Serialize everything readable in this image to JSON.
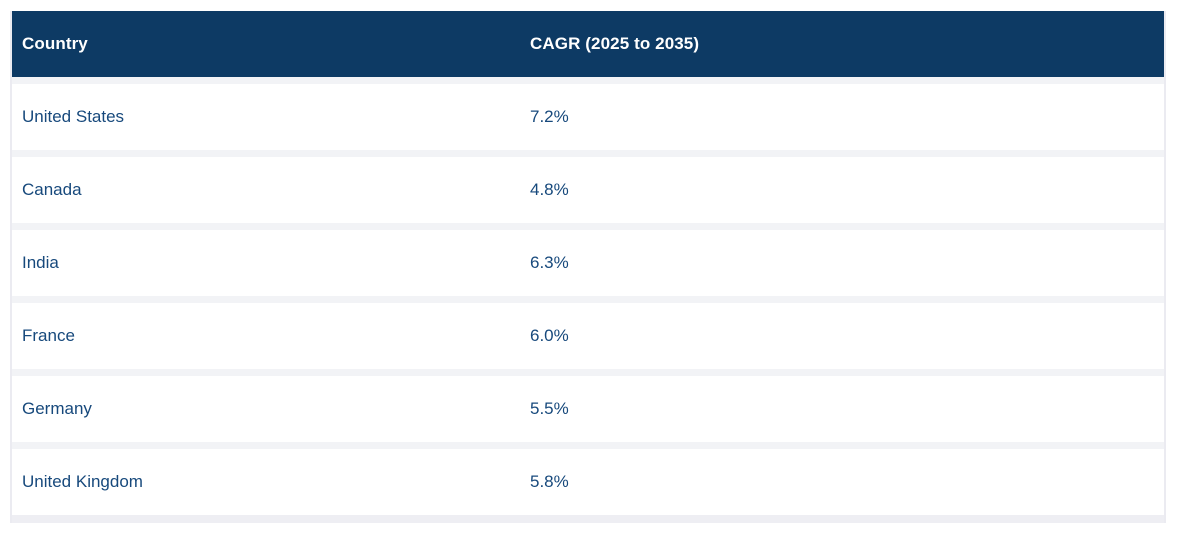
{
  "table": {
    "columns": [
      {
        "label": "Country"
      },
      {
        "label": "CAGR (2025 to 2035)"
      }
    ],
    "rows": [
      {
        "country": "United States",
        "cagr": "7.2%"
      },
      {
        "country": "Canada",
        "cagr": "4.8%"
      },
      {
        "country": "India",
        "cagr": "6.3%"
      },
      {
        "country": "France",
        "cagr": "6.0%"
      },
      {
        "country": "Germany",
        "cagr": "5.5%"
      },
      {
        "country": "United Kingdom",
        "cagr": "5.8%"
      }
    ],
    "colors": {
      "header_bg": "#0d3a64",
      "header_text": "#ffffff",
      "row_text": "#17497c",
      "row_bg": "#ffffff",
      "separator": "#f2f3f6",
      "outer_border": "#ebebf1",
      "bottom_border": "#eeeef3"
    }
  },
  "chart_data": {
    "type": "table",
    "title": "",
    "columns": [
      "Country",
      "CAGR (2025 to 2035)"
    ],
    "rows": [
      [
        "United States",
        "7.2%"
      ],
      [
        "Canada",
        "4.8%"
      ],
      [
        "India",
        "6.3%"
      ],
      [
        "France",
        "6.0%"
      ],
      [
        "Germany",
        "5.5%"
      ],
      [
        "United Kingdom",
        "5.8%"
      ]
    ],
    "series": [
      {
        "name": "CAGR (2025 to 2035)",
        "categories": [
          "United States",
          "Canada",
          "India",
          "France",
          "Germany",
          "United Kingdom"
        ],
        "values_percent": [
          7.2,
          4.8,
          6.3,
          6.0,
          5.5,
          5.8
        ]
      }
    ],
    "legend_position": "none",
    "grid": false
  }
}
